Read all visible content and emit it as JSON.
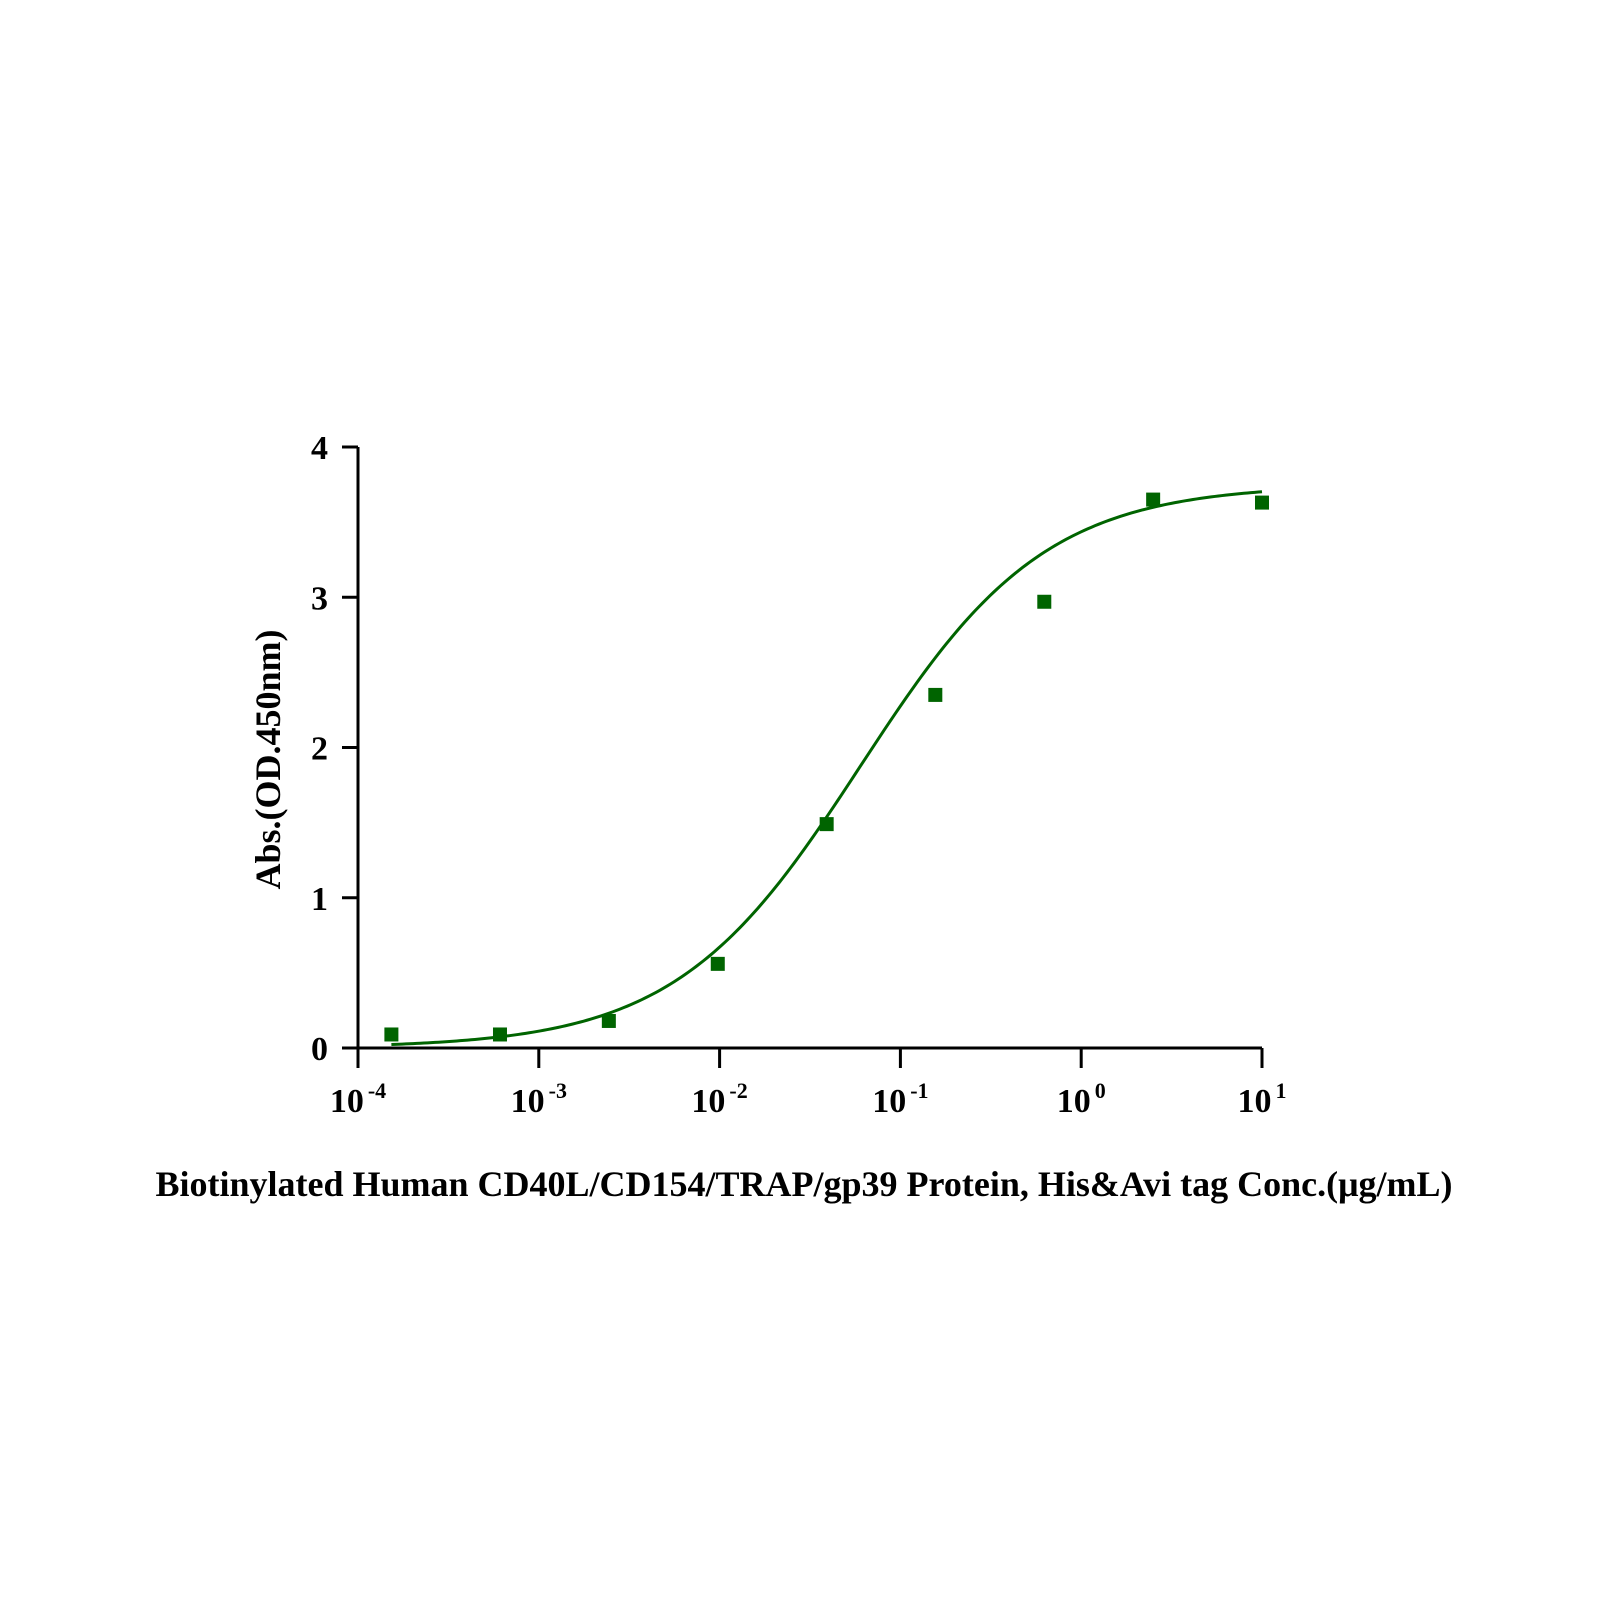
{
  "chart_data": {
    "type": "scatter",
    "xlabel": "Biotinylated Human CD40L/CD154/TRAP/gp39 Protein, His&Avi tag Conc.(μg/mL)",
    "ylabel": "Abs.(OD.450nm)",
    "x_scale": "log",
    "xlim": [
      0.0001,
      10
    ],
    "ylim": [
      0,
      4
    ],
    "x_ticks": [
      {
        "value": 0.0001,
        "base": "10",
        "exponent": "-4"
      },
      {
        "value": 0.001,
        "base": "10",
        "exponent": "-3"
      },
      {
        "value": 0.01,
        "base": "10",
        "exponent": "-2"
      },
      {
        "value": 0.1,
        "base": "10",
        "exponent": "-1"
      },
      {
        "value": 1,
        "base": "10",
        "exponent": "0"
      },
      {
        "value": 10,
        "base": "10",
        "exponent": "1"
      }
    ],
    "y_ticks": [
      "0",
      "1",
      "2",
      "3",
      "4"
    ],
    "grid": false,
    "legend": "none",
    "series": [
      {
        "marker": "square",
        "color": "#006400",
        "x": [
          0.000153,
          0.00061,
          0.00244,
          0.00977,
          0.0391,
          0.156,
          0.625,
          2.5,
          10
        ],
        "y": [
          0.09,
          0.09,
          0.18,
          0.56,
          1.49,
          2.35,
          2.97,
          3.65,
          3.63
        ]
      }
    ],
    "fit_curve": {
      "type": "4PL",
      "color": "#006400",
      "bottom": 0.0,
      "top": 3.75,
      "ec50": 0.06,
      "hill": 0.85,
      "x_range": [
        0.000153,
        10
      ]
    }
  }
}
